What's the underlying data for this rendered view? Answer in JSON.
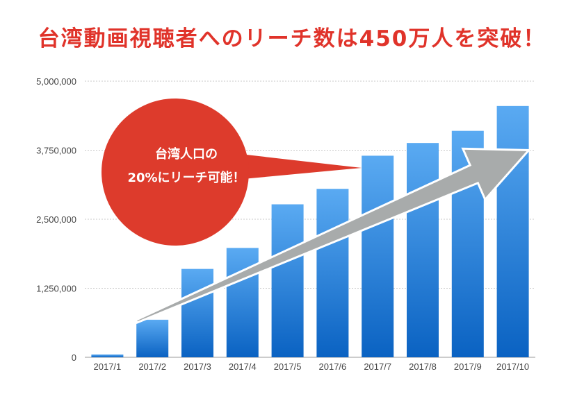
{
  "title": "台湾動画視聴者へのリーチ数は450万人を突破！",
  "callout": {
    "line1": "台湾人口の",
    "line2": "20%にリーチ可能！"
  },
  "colors": {
    "title": "#e0332a",
    "callout": "#dd3b2c",
    "bar_top": "#5aaaf2",
    "bar_bottom": "#0a62c2",
    "arrow": "#a8abab"
  },
  "chart_data": {
    "type": "bar",
    "categories": [
      "2017/1",
      "2017/2",
      "2017/3",
      "2017/4",
      "2017/5",
      "2017/6",
      "2017/7",
      "2017/8",
      "2017/9",
      "2017/10"
    ],
    "values": [
      50000,
      680000,
      1600000,
      1980000,
      2770000,
      3050000,
      3650000,
      3880000,
      4100000,
      4550000
    ],
    "ylim": [
      0,
      5000000
    ],
    "yticks": [
      0,
      1250000,
      2500000,
      3750000,
      5000000
    ],
    "ytick_labels": [
      "0",
      "1,250,000",
      "2,500,000",
      "3,750,000",
      "5,000,000"
    ],
    "grid": true,
    "trend_arrow": {
      "from_category": "2017/2",
      "to_category": "2017/10",
      "from_value": 650000,
      "to_value": 3750000
    }
  }
}
